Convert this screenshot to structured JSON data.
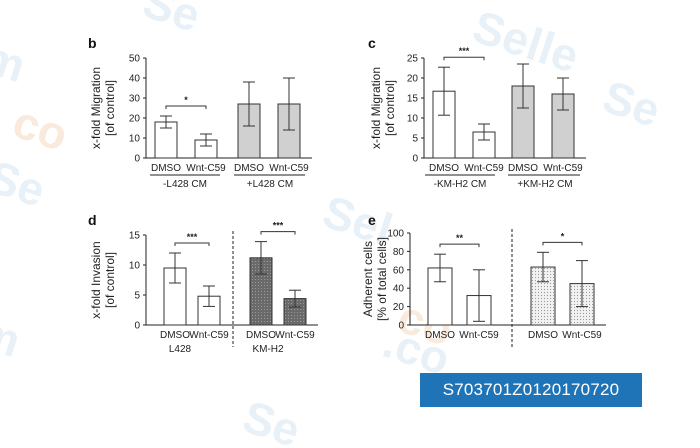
{
  "watermark": {
    "label": "S703701Z0120170720",
    "bg_color": "#1f73b7"
  },
  "colors": {
    "white_bar": "#ffffff",
    "gray_bar": "#d0d0d0",
    "dark_bar": "#6e6e6e",
    "dotted_bar": "#ececec"
  },
  "chart_data": [
    {
      "panel": "b",
      "type": "bar",
      "ylabel": [
        "x-fold Migration",
        "[of control]"
      ],
      "ylim": [
        0,
        50
      ],
      "yticks": [
        0,
        10,
        20,
        30,
        40,
        50
      ],
      "categories": [
        "DMSO",
        "Wnt-C59",
        "DMSO",
        "Wnt-C59"
      ],
      "groups": [
        "-L428 CM",
        "+L428 CM"
      ],
      "values": [
        18,
        9,
        27,
        27
      ],
      "errors": [
        3,
        3,
        11,
        13
      ],
      "fills": [
        "white",
        "white",
        "gray",
        "gray"
      ],
      "significance": [
        {
          "between": [
            0,
            1
          ],
          "label": "*"
        }
      ],
      "divider": false
    },
    {
      "panel": "c",
      "type": "bar",
      "ylabel": [
        "x-fold Migration",
        "[of control]"
      ],
      "ylim": [
        0,
        25
      ],
      "yticks": [
        0,
        5,
        10,
        15,
        20,
        25
      ],
      "categories": [
        "DMSO",
        "Wnt-C59",
        "DMSO",
        "Wnt-C59"
      ],
      "groups": [
        "-KM-H2 CM",
        "+KM-H2 CM"
      ],
      "values": [
        16.7,
        6.5,
        18,
        16
      ],
      "errors": [
        6,
        2,
        5.5,
        4
      ],
      "fills": [
        "white",
        "white",
        "gray",
        "gray"
      ],
      "significance": [
        {
          "between": [
            0,
            1
          ],
          "label": "***"
        }
      ],
      "divider": false
    },
    {
      "panel": "d",
      "type": "bar",
      "ylabel": [
        "x-fold Invasion",
        "[of control]"
      ],
      "ylim": [
        0,
        15
      ],
      "yticks": [
        0,
        5,
        10,
        15
      ],
      "categories": [
        "DMSO",
        "Wnt-C59",
        "DMSO",
        "Wnt-C59"
      ],
      "groups": [
        "L428",
        "KM-H2"
      ],
      "values": [
        9.5,
        4.8,
        11.2,
        4.4
      ],
      "errors": [
        2.5,
        1.7,
        2.7,
        1.4
      ],
      "fills": [
        "white",
        "white",
        "dark",
        "dark"
      ],
      "significance": [
        {
          "between": [
            0,
            1
          ],
          "label": "***"
        },
        {
          "between": [
            2,
            3
          ],
          "label": "***"
        }
      ],
      "divider": true
    },
    {
      "panel": "e",
      "type": "bar",
      "ylabel": [
        "Adherent cells",
        "[% of total cells]"
      ],
      "ylim": [
        0,
        100
      ],
      "yticks": [
        0,
        20,
        40,
        60,
        80,
        100
      ],
      "categories": [
        "DMSO",
        "Wnt-C59",
        "DMSO",
        "Wnt-C59"
      ],
      "groups": [],
      "values": [
        62,
        32,
        63,
        45
      ],
      "errors": [
        15,
        28,
        16,
        25
      ],
      "fills": [
        "white",
        "white",
        "dotted",
        "dotted"
      ],
      "significance": [
        {
          "between": [
            0,
            1
          ],
          "label": "**"
        },
        {
          "between": [
            2,
            3
          ],
          "label": "*"
        }
      ],
      "divider": true
    }
  ]
}
